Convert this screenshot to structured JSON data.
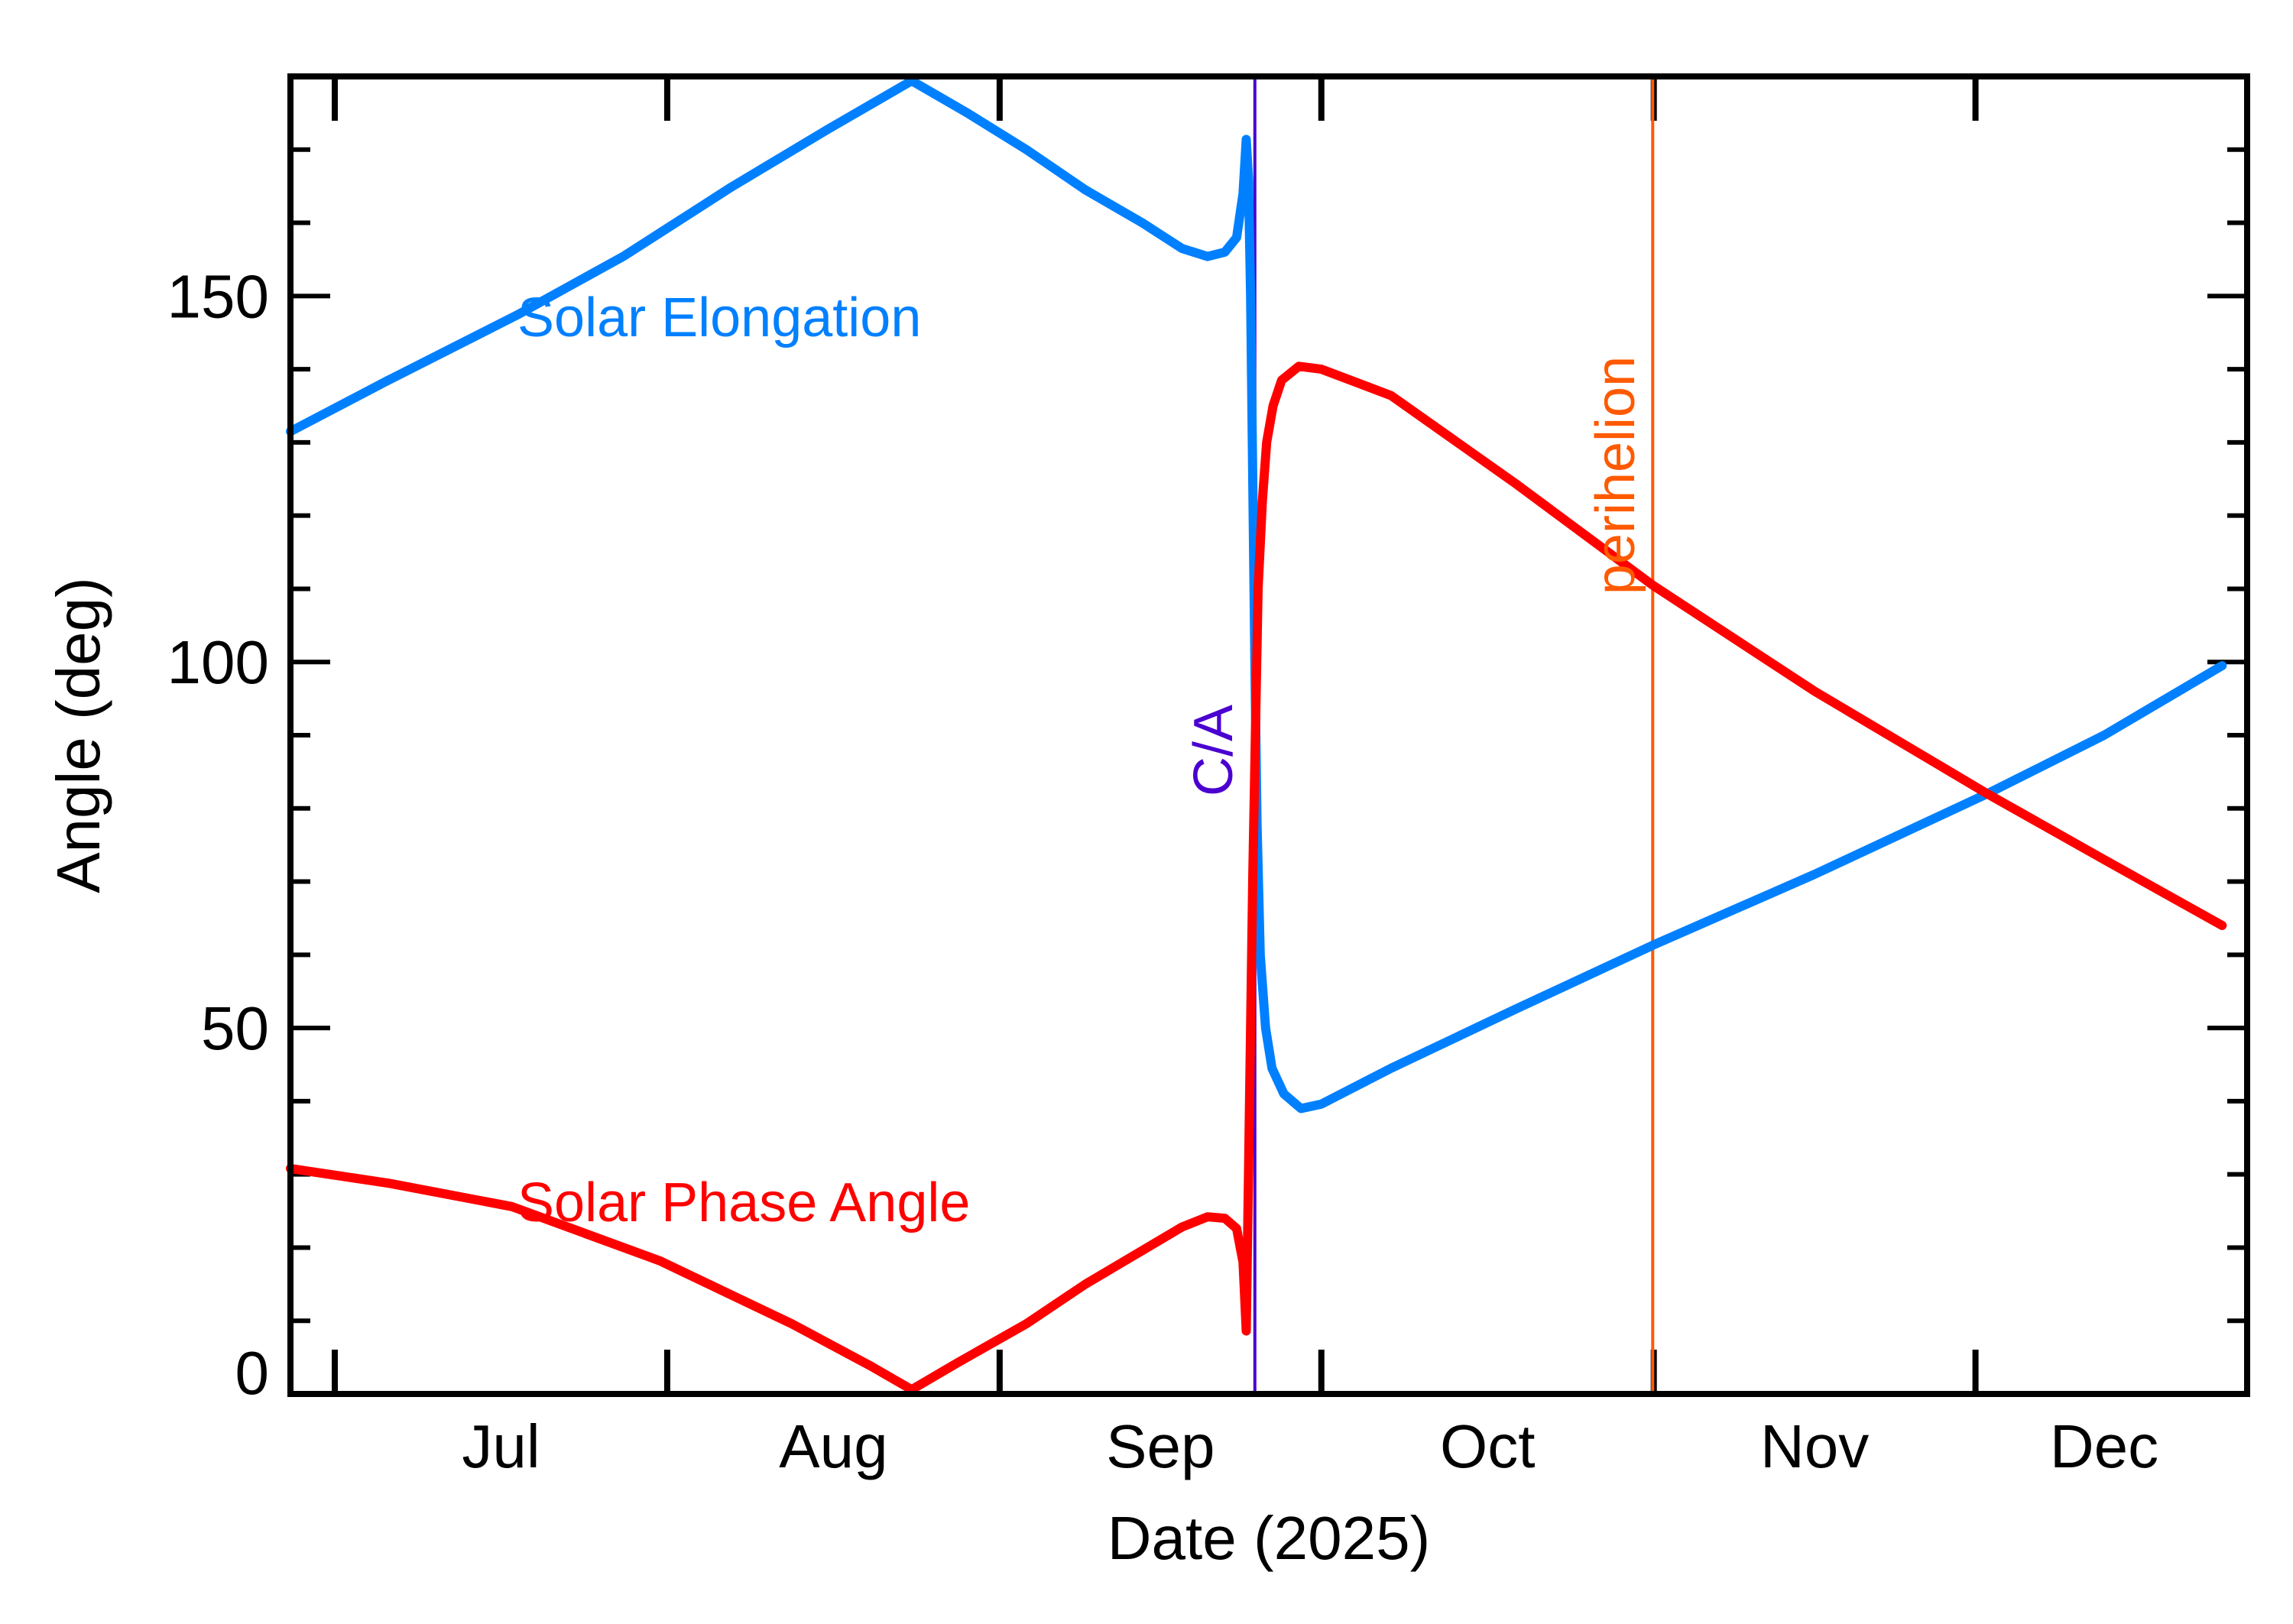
{
  "chart_data": {
    "type": "line",
    "title": "",
    "xlabel": "Date (2025)",
    "ylabel": "Angle (deg)",
    "x_units": "days since 2025-07-01",
    "xlim": [
      -4.4,
      176
    ],
    "ylim": [
      0,
      180
    ],
    "grid": false,
    "y_major_ticks": [
      0,
      50,
      100,
      150
    ],
    "y_tick_labels": [
      "0",
      "50",
      "100",
      "150"
    ],
    "y_minor_step": 10,
    "x_month_boundaries": [
      0,
      31,
      62,
      92,
      123,
      153
    ],
    "x_tick_labels": [
      {
        "label": "Jul",
        "at": 15.5
      },
      {
        "label": "Aug",
        "at": 46.5
      },
      {
        "label": "Sep",
        "at": 77
      },
      {
        "label": "Oct",
        "at": 107.5
      },
      {
        "label": "Nov",
        "at": 138
      },
      {
        "label": "Dec",
        "at": 165
      }
    ],
    "series": [
      {
        "name": "Solar Elongation",
        "color": "#0080ff",
        "x": [
          -4.4,
          5,
          17.0,
          27,
          37,
          46,
          53.8,
          59,
          64.5,
          70,
          75.3,
          79,
          81.4,
          83,
          84.1,
          84.7,
          85.0,
          85.2,
          85.4,
          85.6,
          85.8,
          86.0,
          86.3,
          86.8,
          87.4,
          88.5,
          90.1,
          92,
          98.5,
          110,
          122.9,
          138,
          154.1,
          165,
          176
        ],
        "y": [
          131.5,
          138.5,
          147.4,
          155.5,
          164.9,
          172.8,
          179.4,
          175,
          170,
          164.5,
          160,
          156.5,
          155.4,
          156,
          158,
          164,
          171.4,
          166,
          150,
          125,
          100,
          78,
          60,
          50,
          44.5,
          41,
          39,
          39.6,
          44.5,
          52.5,
          61.3,
          71,
          82,
          90,
          99.5
        ]
      },
      {
        "name": "Solar Phase Angle",
        "color": "#ff0000",
        "x": [
          -4.4,
          5,
          16.5,
          30.3,
          42.6,
          50,
          53.8,
          58,
          64.5,
          70,
          75.3,
          79,
          81.4,
          83,
          84.1,
          84.7,
          85.0,
          85.3,
          85.6,
          86.1,
          86.5,
          86.9,
          87.5,
          88.3,
          89.9,
          92,
          98.5,
          110,
          122.9,
          138,
          154.1,
          165,
          176
        ],
        "y": [
          30.8,
          28.8,
          25.6,
          18.2,
          9.6,
          3.8,
          0.6,
          4.2,
          9.6,
          15,
          19.6,
          22.8,
          24.2,
          24,
          22.6,
          18,
          8.6,
          40,
          70.5,
          110,
          122,
          130,
          135,
          138.5,
          140.4,
          140,
          136.4,
          124.5,
          110.5,
          96,
          82,
          73,
          64
        ]
      }
    ],
    "annotations": {
      "elongation_label": "Solar Elongation",
      "phase_label": "Solar Phase Angle",
      "ca": {
        "label": "C/A",
        "x": 85.8,
        "color": "#4a00d0"
      },
      "perihelion": {
        "label": "perihelion",
        "x": 122.9,
        "color": "#ff5a00"
      }
    }
  }
}
